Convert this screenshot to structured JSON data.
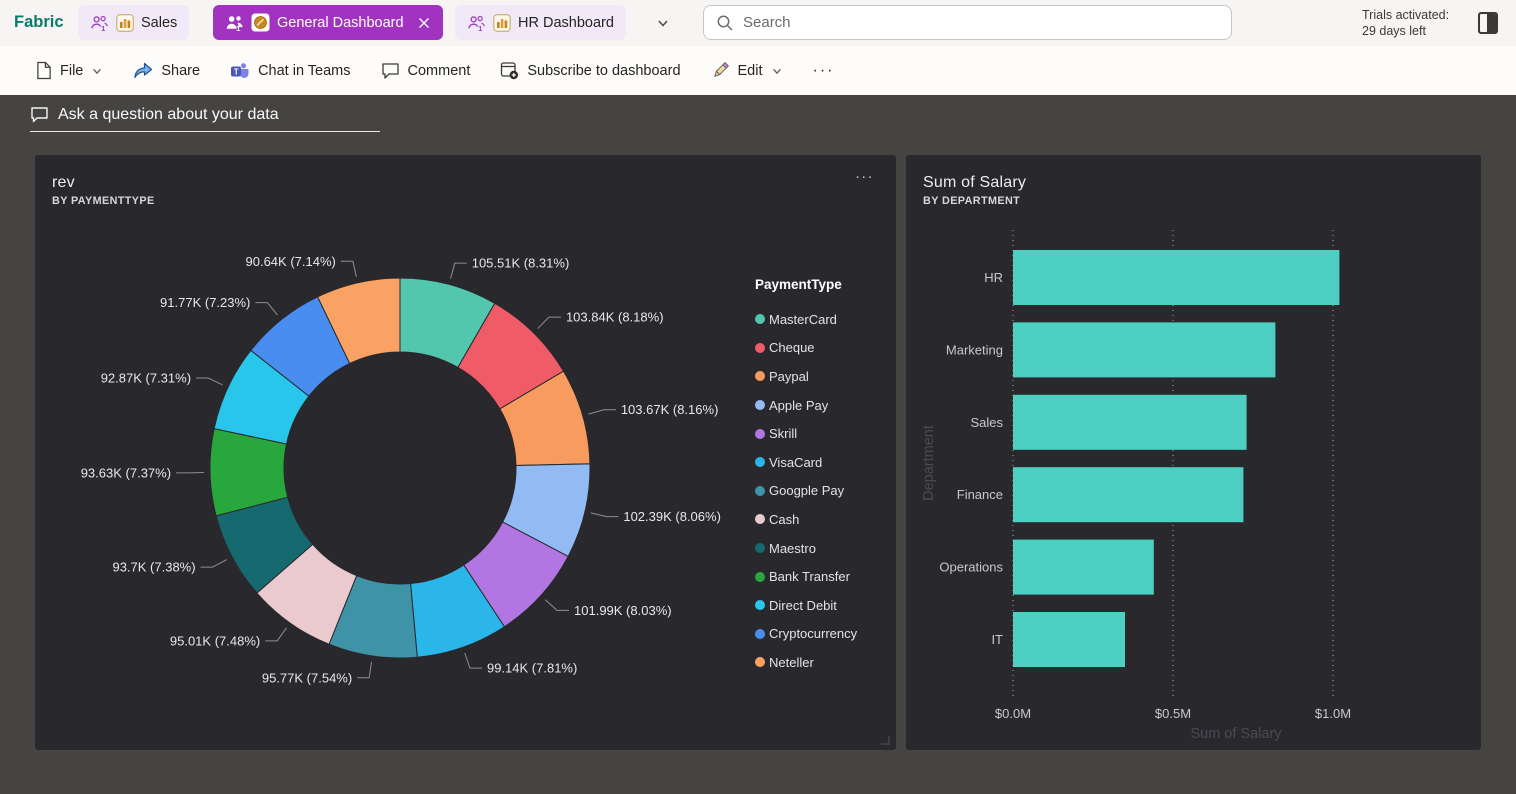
{
  "topbar": {
    "logo": "Fabric",
    "tabs": [
      {
        "label": "Sales"
      },
      {
        "label": "General Dashboard"
      },
      {
        "label": "HR Dashboard"
      }
    ],
    "search_placeholder": "Search",
    "trial_line1": "Trials activated:",
    "trial_line2": "29 days left"
  },
  "toolbar": {
    "file": "File",
    "share": "Share",
    "chat": "Chat in Teams",
    "comment": "Comment",
    "subscribe": "Subscribe to dashboard",
    "edit": "Edit",
    "more": "···"
  },
  "ask": {
    "label": "Ask a question about your data"
  },
  "cards": {
    "more": "..."
  },
  "colors": {
    "page_bg": "#454443",
    "card_bg": "#29282D",
    "active_tab": "#A233C1",
    "bar_teal": "#4DCFC2"
  },
  "chart_data": [
    {
      "type": "pie",
      "variant": "donut",
      "title": "rev",
      "subtitle": "BY PAYMENTTYPE",
      "legend_title": "PaymentType",
      "legend_position": "right",
      "center": [
        365,
        313
      ],
      "outer_radius": 190,
      "inner_radius": 116,
      "label_color": "#E8E8E8",
      "leader_color": "#8F8F8F",
      "series": [
        {
          "label": "MasterCard",
          "value_k": 105.51,
          "pct": 8.31,
          "display": "105.51K (8.31%)",
          "color": "#53C7AE"
        },
        {
          "label": "Cheque",
          "value_k": 103.84,
          "pct": 8.18,
          "display": "103.84K (8.18%)",
          "color": "#EF5B67"
        },
        {
          "label": "Paypal",
          "value_k": 103.67,
          "pct": 8.16,
          "display": "103.67K (8.16%)",
          "color": "#F89B5E"
        },
        {
          "label": "Apple Pay",
          "value_k": 102.39,
          "pct": 8.06,
          "display": "102.39K (8.06%)",
          "color": "#92BAF3"
        },
        {
          "label": "Skrill",
          "value_k": 101.99,
          "pct": 8.03,
          "display": "101.99K (8.03%)",
          "color": "#B176E2"
        },
        {
          "label": "VisaCard",
          "value_k": 99.14,
          "pct": 7.81,
          "display": "99.14K (7.81%)",
          "color": "#2AB6E8"
        },
        {
          "label": "Googple Pay",
          "value_k": 95.77,
          "pct": 7.54,
          "display": "95.77K (7.54%)",
          "color": "#3E93A6"
        },
        {
          "label": "Cash",
          "value_k": 95.01,
          "pct": 7.48,
          "display": "95.01K (7.48%)",
          "color": "#EACACF"
        },
        {
          "label": "Maestro",
          "value_k": 93.7,
          "pct": 7.38,
          "display": "93.7K (7.38%)",
          "color": "#15696F"
        },
        {
          "label": "Bank Transfer",
          "value_k": 93.63,
          "pct": 7.37,
          "display": "93.63K (7.37%)",
          "color": "#28A73C"
        },
        {
          "label": "Direct Debit",
          "value_k": 92.87,
          "pct": 7.31,
          "display": "92.87K (7.31%)",
          "color": "#29C6EC"
        },
        {
          "label": "Cryptocurrency",
          "value_k": 91.77,
          "pct": 7.23,
          "display": "91.77K (7.23%)",
          "color": "#4A8DF0"
        },
        {
          "label": "Neteller",
          "value_k": 90.64,
          "pct": 7.14,
          "display": "90.64K (7.14%)",
          "color": "#F9A263"
        }
      ]
    },
    {
      "type": "bar",
      "orientation": "horizontal",
      "title": "Sum of Salary",
      "subtitle": "BY DEPARTMENT",
      "xlabel": "Sum of Salary",
      "ylabel": "Department",
      "categories": [
        "HR",
        "Marketing",
        "Sales",
        "Finance",
        "Operations",
        "IT"
      ],
      "values_millions": [
        1.02,
        0.82,
        0.73,
        0.72,
        0.44,
        0.35
      ],
      "xticks": [
        {
          "label": "$0.0M",
          "value": 0
        },
        {
          "label": "$0.5M",
          "value": 0.5
        },
        {
          "label": "$1.0M",
          "value": 1.0
        }
      ],
      "xlim": [
        0,
        1.4
      ],
      "grid": "dotted-vertical",
      "bar_color": "#4DCFC2",
      "axis_text_color": "#C9C9C9",
      "axis_title_color": "#4A4A52",
      "grid_color": "#CFCFCF"
    }
  ]
}
